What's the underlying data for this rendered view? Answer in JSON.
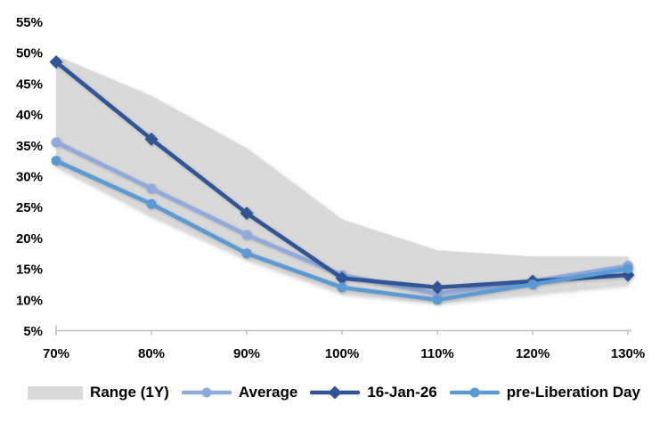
{
  "chart_data": {
    "type": "line",
    "categories": [
      "70%",
      "80%",
      "90%",
      "100%",
      "110%",
      "120%",
      "130%"
    ],
    "series": [
      {
        "name": "Range (1Y)",
        "kind": "band",
        "upper": [
          49.5,
          43,
          34.5,
          23,
          18,
          17,
          17
        ],
        "lower": [
          31.5,
          23.5,
          16.5,
          11,
          9.5,
          11,
          12.5
        ],
        "color": "#d9d9d9"
      },
      {
        "name": "Average",
        "kind": "line",
        "marker": "circle",
        "values": [
          35.5,
          28,
          20.5,
          14,
          11,
          13,
          15.5
        ],
        "color": "#8faadc"
      },
      {
        "name": "16-Jan-26",
        "kind": "line",
        "marker": "diamond",
        "values": [
          48.5,
          36,
          24,
          13.5,
          12,
          13,
          14
        ],
        "color": "#2f5597"
      },
      {
        "name": "pre-Liberation Day",
        "kind": "line",
        "marker": "circle",
        "values": [
          32.5,
          25.5,
          17.5,
          12,
          10,
          12.5,
          15
        ],
        "color": "#5b9bd5"
      }
    ],
    "y_ticks": [
      "55%",
      "50%",
      "45%",
      "40%",
      "35%",
      "30%",
      "25%",
      "20%",
      "15%",
      "10%",
      "5%"
    ],
    "ylim": [
      5,
      55
    ],
    "xlabel": "",
    "ylabel": "",
    "grid": false,
    "legend_position": "bottom",
    "axis_color": "#bfbfbf",
    "text_color": "#000000"
  }
}
